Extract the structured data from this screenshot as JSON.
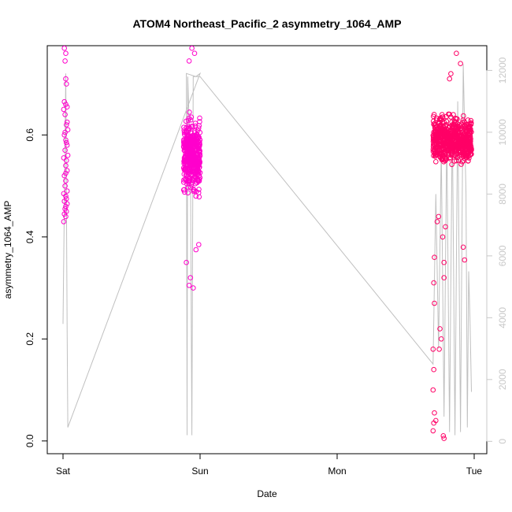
{
  "chart_data": {
    "type": "scatter",
    "title": "ATOM4 Northeast_Pacific_2 asymmetry_1064_AMP",
    "xlabel": "Date",
    "ylabel": "asymmetry_1064_AMP",
    "x_ticks": [
      "Sat",
      "Sun",
      "Mon",
      "Tue"
    ],
    "xlim_days": [
      0,
      3
    ],
    "ylim": [
      -0.025,
      0.775
    ],
    "y_ticks": [
      "0.0",
      "0.2",
      "0.4",
      "0.6"
    ],
    "y_tick_values": [
      0,
      0.2,
      0.4,
      0.6
    ],
    "y2lim": [
      -400,
      12800
    ],
    "y2_ticks": [
      "0",
      "2000",
      "4000",
      "6000",
      "8000",
      "10000",
      "12000"
    ],
    "y2_tick_values": [
      0,
      2000,
      4000,
      6000,
      8000,
      10000,
      12000
    ],
    "grid": false,
    "series": [
      {
        "kind": "points",
        "color": "#ff00cc",
        "description": "Sat cluster",
        "x_range_days": [
          0.0,
          0.04
        ],
        "y_points": [
          [
            0.01,
            0.77
          ],
          [
            0.02,
            0.76
          ],
          [
            0.015,
            0.745
          ],
          [
            0.02,
            0.71
          ],
          [
            0.025,
            0.7
          ],
          [
            0.01,
            0.665
          ],
          [
            0.02,
            0.66
          ],
          [
            0.03,
            0.655
          ],
          [
            0.005,
            0.65
          ],
          [
            0.015,
            0.64
          ],
          [
            0.025,
            0.62
          ],
          [
            0.035,
            0.61
          ],
          [
            0.01,
            0.6
          ],
          [
            0.02,
            0.59
          ],
          [
            0.03,
            0.58
          ],
          [
            0.015,
            0.57
          ],
          [
            0.005,
            0.555
          ],
          [
            0.025,
            0.55
          ],
          [
            0.02,
            0.54
          ],
          [
            0.03,
            0.53
          ],
          [
            0.01,
            0.52
          ],
          [
            0.02,
            0.51
          ],
          [
            0.015,
            0.5
          ],
          [
            0.03,
            0.49
          ],
          [
            0.005,
            0.485
          ],
          [
            0.02,
            0.48
          ],
          [
            0.025,
            0.475
          ],
          [
            0.01,
            0.47
          ],
          [
            0.03,
            0.465
          ],
          [
            0.02,
            0.46
          ],
          [
            0.015,
            0.455
          ],
          [
            0.025,
            0.45
          ],
          [
            0.01,
            0.445
          ],
          [
            0.02,
            0.44
          ],
          [
            0.005,
            0.43
          ],
          [
            0.03,
            0.625
          ],
          [
            0.035,
            0.56
          ],
          [
            0.015,
            0.605
          ],
          [
            0.025,
            0.585
          ],
          [
            0.02,
            0.525
          ]
        ]
      },
      {
        "kind": "points",
        "color": "#ff00cc",
        "description": "Sun cluster",
        "x_range_days": [
          0.88,
          1.02
        ]
      },
      {
        "kind": "points",
        "color": "#ff0066",
        "description": "Tue cluster",
        "x_range_days": [
          2.7,
          2.98
        ]
      },
      {
        "kind": "line",
        "axis": "right",
        "color": "#c0c0c0",
        "description": "secondary series (right axis)",
        "points": [
          [
            0.0,
            3800
          ],
          [
            0.02,
            11900
          ],
          [
            0.03,
            3700
          ],
          [
            0.035,
            450
          ],
          [
            1.0,
            11900
          ],
          [
            0.97,
            11800
          ],
          [
            0.9,
            11900
          ],
          [
            0.905,
            200
          ],
          [
            0.91,
            11800
          ],
          [
            0.93,
            9000
          ],
          [
            0.94,
            200
          ],
          [
            0.95,
            11800
          ],
          [
            1.0,
            11800
          ],
          [
            2.7,
            2500
          ],
          [
            2.72,
            8000
          ],
          [
            2.74,
            3000
          ],
          [
            2.76,
            9500
          ],
          [
            2.78,
            800
          ],
          [
            2.8,
            10000
          ],
          [
            2.82,
            300
          ],
          [
            2.84,
            10500
          ],
          [
            2.86,
            200
          ],
          [
            2.88,
            11000
          ],
          [
            2.9,
            300
          ],
          [
            2.92,
            12200
          ],
          [
            2.94,
            8000
          ],
          [
            2.95,
            450
          ],
          [
            2.96,
            5500
          ],
          [
            2.97,
            3800
          ],
          [
            2.98,
            1600
          ]
        ]
      }
    ]
  }
}
